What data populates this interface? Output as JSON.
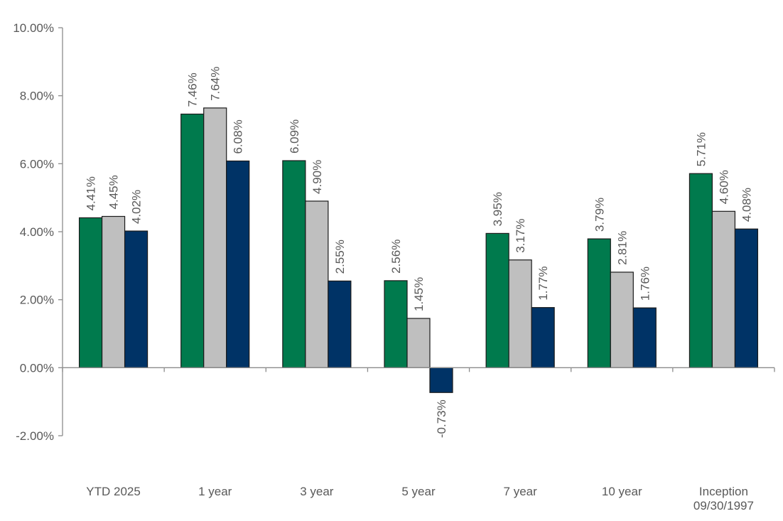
{
  "chart_data": {
    "type": "bar",
    "title": "",
    "xlabel": "",
    "ylabel": "",
    "categories": [
      [
        "YTD 2025"
      ],
      [
        "1 year"
      ],
      [
        "3 year"
      ],
      [
        "5 year"
      ],
      [
        "7 year"
      ],
      [
        "10 year"
      ],
      [
        "Inception",
        "09/30/1997"
      ]
    ],
    "series": [
      {
        "values": [
          4.41,
          7.46,
          6.09,
          2.56,
          3.95,
          3.79,
          5.71
        ],
        "color": "#007a4d",
        "labels": [
          "4.41%",
          "7.46%",
          "6.09%",
          "2.56%",
          "3.95%",
          "3.79%",
          "5.71%"
        ]
      },
      {
        "values": [
          4.45,
          7.64,
          4.9,
          1.45,
          3.17,
          2.81,
          4.6
        ],
        "color": "#bfbfbf",
        "labels": [
          "4.45%",
          "7.64%",
          "4.90%",
          "1.45%",
          "3.17%",
          "2.81%",
          "4.60%"
        ]
      },
      {
        "values": [
          4.02,
          6.08,
          2.55,
          -0.73,
          1.77,
          1.76,
          4.08
        ],
        "color": "#003366",
        "labels": [
          "4.02%",
          "6.08%",
          "2.55%",
          "-0.73%",
          "1.77%",
          "1.76%",
          "4.08%"
        ]
      }
    ],
    "ylim": [
      -2,
      10
    ],
    "yticks": [
      -2,
      0,
      2,
      4,
      6,
      8,
      10
    ],
    "ytick_labels": [
      "-2.00%",
      "0.00%",
      "2.00%",
      "4.00%",
      "6.00%",
      "8.00%",
      "10.00%"
    ],
    "grid": false,
    "legend": "none",
    "data_labels": "rotated-vertical"
  }
}
